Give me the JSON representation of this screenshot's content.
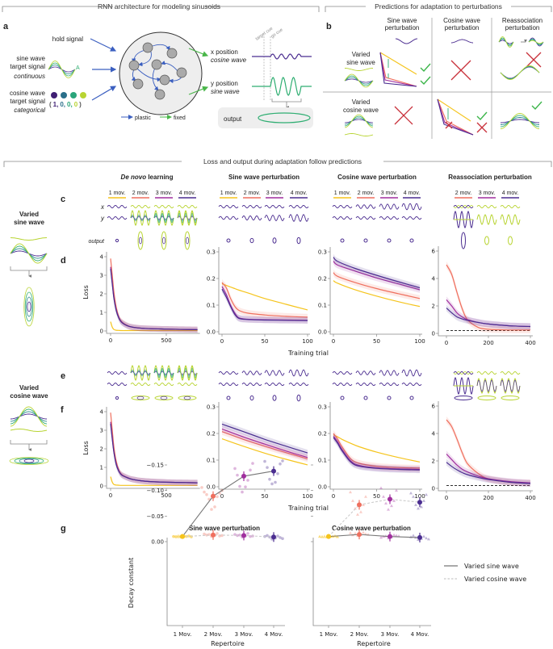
{
  "colors": {
    "mov1": "#f5c41c",
    "mov2": "#ef6f5e",
    "mov3": "#a02f9e",
    "mov4": "#4b2d90",
    "plastic_arrow": "#3b5fc0",
    "fixed_arrow": "#49b649",
    "lime": "#b8d432",
    "green": "#2fae72",
    "teal": "#2b8a8d",
    "check": "#3cb54a",
    "cross": "#c8303a"
  },
  "panel_labels": {
    "a": "a",
    "b": "b",
    "c": "c",
    "d": "d",
    "e": "e",
    "f": "f",
    "g": "g"
  },
  "section_a": {
    "header": "RNN architecture for modeling sinusoids",
    "hold_signal": "hold signal",
    "sine_line1": "sine wave",
    "sine_line2": "target signal",
    "sine_line3": "continuous",
    "amplitude_label": "A",
    "cos_line1": "cosine wave",
    "cos_line2": "target signal",
    "cos_line3": "categorical",
    "onehot_open": "(",
    "onehot": [
      "1,",
      "0,",
      "0,",
      "0"
    ],
    "onehot_close": ")",
    "x_position": "x position",
    "x_wave": "cosine wave",
    "y_position": "y position",
    "y_wave": "sine wave",
    "target_cue": "target cue",
    "go_cue": "go cue",
    "output": "output",
    "legend_plastic": "plastic",
    "legend_fixed": "fixed"
  },
  "section_b": {
    "header": "Predictions for adaptation to perturbations",
    "columns": [
      {
        "line1": "Sine wave",
        "line2": "perturbation"
      },
      {
        "line1": "Cosine wave",
        "line2": "perturbation"
      },
      {
        "line1": "Reassociation",
        "line2": "perturbation"
      }
    ],
    "rows": [
      {
        "line1": "Varied",
        "line2": "sine wave",
        "outcomes": [
          "check",
          "cross",
          "cross"
        ]
      },
      {
        "line1": "Varied",
        "line2": "cosine wave",
        "outcomes": [
          "cross",
          "check-and-cross",
          "check"
        ]
      }
    ]
  },
  "section_cf": {
    "header": "Loss and output during adaptation follow predictions",
    "columns": [
      {
        "title_italic": "De novo",
        "title_rest": " learning",
        "legend": [
          "1 mov.",
          "2 mov.",
          "3 mov.",
          "4 mov."
        ]
      },
      {
        "title_italic": "",
        "title_rest": "Sine wave perturbation",
        "legend": [
          "1 mov.",
          "2 mov.",
          "3 mov.",
          "4 mov."
        ]
      },
      {
        "title_italic": "",
        "title_rest": "Cosine wave perturbation",
        "legend": [
          "1 mov.",
          "2 mov.",
          "3 mov.",
          "4 mov."
        ]
      },
      {
        "title_italic": "",
        "title_rest": "Reassociation perturbation",
        "legend": [
          "2 mov.",
          "3 mov.",
          "4 mov."
        ]
      }
    ],
    "x_row_label": "x",
    "y_row_label": "y",
    "output_row_label": "output",
    "left_sine": {
      "line1": "Varied",
      "line2": "sine wave"
    },
    "left_cos": {
      "line1": "Varied",
      "line2": "cosine wave"
    },
    "ylabel": "Loss",
    "xlabel": "Training trial"
  },
  "chart_data": [
    {
      "id": "d1",
      "type": "line",
      "panel": "d",
      "column": "De novo learning",
      "ylabel": "Loss",
      "xlim": [
        0,
        780
      ],
      "ylim": [
        0,
        4.25
      ],
      "xticks": [
        0,
        500
      ],
      "yticks": [
        0,
        1,
        2,
        3,
        4
      ],
      "x": [
        0,
        15,
        30,
        50,
        75,
        100,
        150,
        200,
        300,
        500,
        780
      ],
      "series": [
        {
          "name": "1 mov.",
          "values": [
            0.5,
            0.2,
            0.08,
            0.04,
            0.03,
            0.02,
            0.02,
            0.02,
            0.02,
            0.02,
            0.02
          ]
        },
        {
          "name": "2 mov.",
          "values": [
            3.9,
            3.0,
            2.1,
            1.3,
            0.75,
            0.5,
            0.3,
            0.2,
            0.14,
            0.1,
            0.07
          ]
        },
        {
          "name": "3 mov.",
          "values": [
            3.45,
            2.6,
            1.8,
            1.15,
            0.7,
            0.47,
            0.28,
            0.2,
            0.14,
            0.1,
            0.07
          ]
        },
        {
          "name": "4 mov.",
          "values": [
            3.35,
            2.5,
            1.75,
            1.1,
            0.68,
            0.46,
            0.28,
            0.2,
            0.14,
            0.1,
            0.07
          ]
        }
      ]
    },
    {
      "id": "d2",
      "type": "line",
      "panel": "d",
      "column": "Sine wave perturbation",
      "xlim": [
        0,
        100
      ],
      "ylim": [
        0,
        0.3
      ],
      "xticks": [
        0,
        50,
        100
      ],
      "yticks": [
        0.0,
        0.1,
        0.2,
        0.3
      ],
      "ytick_labels": [
        "0.0",
        "0.1",
        "0.2",
        "0.3"
      ],
      "x": [
        0,
        5,
        10,
        15,
        20,
        30,
        50,
        75,
        100
      ],
      "series": [
        {
          "name": "1 mov.",
          "values": [
            0.18,
            0.174,
            0.168,
            0.162,
            0.156,
            0.146,
            0.125,
            0.103,
            0.082
          ]
        },
        {
          "name": "2 mov.",
          "values": [
            0.185,
            0.165,
            0.125,
            0.095,
            0.08,
            0.07,
            0.063,
            0.058,
            0.055
          ]
        },
        {
          "name": "3 mov.",
          "values": [
            0.17,
            0.14,
            0.1,
            0.07,
            0.052,
            0.047,
            0.045,
            0.044,
            0.043
          ]
        },
        {
          "name": "4 mov.",
          "values": [
            0.16,
            0.13,
            0.095,
            0.065,
            0.05,
            0.046,
            0.044,
            0.043,
            0.042
          ]
        }
      ]
    },
    {
      "id": "d3",
      "type": "line",
      "panel": "d",
      "column": "Cosine wave perturbation",
      "xlim": [
        0,
        100
      ],
      "ylim": [
        0,
        0.3
      ],
      "xticks": [
        0,
        50,
        100
      ],
      "yticks": [
        0.0,
        0.1,
        0.2,
        0.3
      ],
      "ytick_labels": [
        "0.0",
        "0.1",
        "0.2",
        "0.3"
      ],
      "x": [
        0,
        5,
        25,
        50,
        75,
        100
      ],
      "series": [
        {
          "name": "1 mov.",
          "values": [
            0.192,
            0.182,
            0.158,
            0.134,
            0.113,
            0.095
          ]
        },
        {
          "name": "2 mov.",
          "values": [
            0.222,
            0.208,
            0.185,
            0.162,
            0.143,
            0.125
          ]
        },
        {
          "name": "3 mov.",
          "values": [
            0.265,
            0.25,
            0.228,
            0.202,
            0.18,
            0.158
          ]
        },
        {
          "name": "4 mov.",
          "values": [
            0.28,
            0.264,
            0.238,
            0.212,
            0.188,
            0.165
          ]
        }
      ]
    },
    {
      "id": "d4",
      "type": "line",
      "panel": "d",
      "column": "Reassociation perturbation",
      "xlim": [
        0,
        400
      ],
      "ylim": [
        0,
        6
      ],
      "xticks": [
        0,
        200,
        400
      ],
      "yticks": [
        0,
        2,
        4,
        6
      ],
      "baseline": 0.2,
      "x": [
        0,
        25,
        50,
        75,
        100,
        150,
        200,
        300,
        400
      ],
      "series": [
        {
          "name": "2 mov.",
          "values": [
            5.0,
            4.3,
            3.0,
            1.8,
            1.0,
            0.45,
            0.3,
            0.25,
            0.25
          ]
        },
        {
          "name": "3 mov.",
          "values": [
            2.45,
            2.0,
            1.5,
            1.2,
            1.0,
            0.8,
            0.68,
            0.55,
            0.5
          ]
        },
        {
          "name": "4 mov.",
          "values": [
            1.85,
            1.5,
            1.2,
            1.05,
            0.95,
            0.8,
            0.68,
            0.55,
            0.5
          ]
        }
      ]
    },
    {
      "id": "f1",
      "type": "line",
      "panel": "f",
      "column": "De novo learning",
      "ylabel": "Loss",
      "xlim": [
        0,
        780
      ],
      "ylim": [
        0,
        4.25
      ],
      "xticks": [
        0,
        500
      ],
      "yticks": [
        0,
        1,
        2,
        3,
        4
      ],
      "x": [
        0,
        15,
        30,
        50,
        75,
        100,
        150,
        200,
        300,
        500,
        780
      ],
      "series": [
        {
          "name": "1 mov.",
          "values": [
            0.5,
            0.2,
            0.08,
            0.05,
            0.04,
            0.03,
            0.03,
            0.03,
            0.03,
            0.03,
            0.03
          ]
        },
        {
          "name": "2 mov.",
          "values": [
            3.95,
            3.0,
            2.1,
            1.35,
            0.85,
            0.62,
            0.45,
            0.35,
            0.26,
            0.2,
            0.17
          ]
        },
        {
          "name": "3 mov.",
          "values": [
            3.45,
            2.6,
            1.85,
            1.2,
            0.8,
            0.6,
            0.45,
            0.35,
            0.26,
            0.2,
            0.17
          ]
        },
        {
          "name": "4 mov.",
          "values": [
            3.35,
            2.5,
            1.8,
            1.15,
            0.78,
            0.58,
            0.44,
            0.35,
            0.26,
            0.2,
            0.17
          ]
        }
      ]
    },
    {
      "id": "f2",
      "type": "line",
      "panel": "f",
      "column": "Sine wave perturbation",
      "xlim": [
        0,
        100
      ],
      "ylim": [
        0,
        0.3
      ],
      "xticks": [
        0,
        50,
        100
      ],
      "yticks": [
        0.0,
        0.1,
        0.2,
        0.3
      ],
      "ytick_labels": [
        "0.0",
        "0.1",
        "0.2",
        "0.3"
      ],
      "x": [
        0,
        25,
        50,
        75,
        100
      ],
      "series": [
        {
          "name": "1 mov.",
          "values": [
            0.18,
            0.152,
            0.126,
            0.103,
            0.082
          ]
        },
        {
          "name": "2 mov.",
          "values": [
            0.207,
            0.178,
            0.152,
            0.128,
            0.105
          ]
        },
        {
          "name": "3 mov.",
          "values": [
            0.217,
            0.187,
            0.16,
            0.134,
            0.11
          ]
        },
        {
          "name": "4 mov.",
          "values": [
            0.235,
            0.207,
            0.178,
            0.152,
            0.127
          ]
        }
      ]
    },
    {
      "id": "f3",
      "type": "line",
      "panel": "f",
      "column": "Cosine wave perturbation",
      "xlim": [
        0,
        100
      ],
      "ylim": [
        0,
        0.3
      ],
      "xticks": [
        0,
        50,
        100
      ],
      "yticks": [
        0.0,
        0.1,
        0.2,
        0.3
      ],
      "ytick_labels": [
        "0.0",
        "0.1",
        "0.2",
        "0.3"
      ],
      "x": [
        0,
        5,
        10,
        20,
        30,
        50,
        75,
        100
      ],
      "series": [
        {
          "name": "1 mov.",
          "values": [
            0.195,
            0.187,
            0.178,
            0.163,
            0.15,
            0.13,
            0.11,
            0.093
          ]
        },
        {
          "name": "2 mov.",
          "values": [
            0.2,
            0.178,
            0.15,
            0.105,
            0.088,
            0.077,
            0.072,
            0.07
          ]
        },
        {
          "name": "3 mov.",
          "values": [
            0.19,
            0.168,
            0.14,
            0.097,
            0.08,
            0.071,
            0.067,
            0.065
          ]
        },
        {
          "name": "4 mov.",
          "values": [
            0.185,
            0.162,
            0.135,
            0.093,
            0.077,
            0.069,
            0.065,
            0.063
          ]
        }
      ]
    },
    {
      "id": "f4",
      "type": "line",
      "panel": "f",
      "column": "Reassociation perturbation",
      "xlim": [
        0,
        400
      ],
      "ylim": [
        0,
        6
      ],
      "xticks": [
        0,
        200,
        400
      ],
      "yticks": [
        0,
        2,
        4,
        6
      ],
      "baseline": 0.2,
      "x": [
        0,
        25,
        50,
        75,
        100,
        150,
        200,
        300,
        400
      ],
      "series": [
        {
          "name": "2 mov.",
          "values": [
            5.0,
            4.5,
            3.6,
            2.6,
            1.8,
            1.1,
            0.7,
            0.45,
            0.38
          ]
        },
        {
          "name": "3 mov.",
          "values": [
            2.5,
            2.1,
            1.7,
            1.4,
            1.2,
            0.9,
            0.7,
            0.5,
            0.4
          ]
        },
        {
          "name": "4 mov.",
          "values": [
            1.9,
            1.6,
            1.35,
            1.15,
            1.0,
            0.8,
            0.65,
            0.45,
            0.35
          ]
        }
      ]
    },
    {
      "id": "g1",
      "type": "scatter",
      "panel": "g",
      "title": "Sine wave perturbation",
      "xlabel": "Repertoire",
      "ylabel": "Decay constant",
      "categories": [
        "1 Mov.",
        "2 Mov.",
        "3 Mov.",
        "4 Mov."
      ],
      "ylim": [
        -0.16,
        0.0
      ],
      "yticks": [
        0.0,
        -0.05,
        -0.1,
        -0.15
      ],
      "ytick_labels": [
        "0.00",
        "−0.05",
        "−0.10",
        "−0.15"
      ],
      "series": [
        {
          "name": "Varied sine wave",
          "line": "solid",
          "marker": "circle",
          "means": [
            -0.01,
            -0.089,
            -0.128,
            -0.138
          ],
          "points": [
            [
              -0.009,
              -0.01,
              -0.011,
              -0.01,
              -0.009,
              -0.011,
              -0.01,
              -0.01
            ],
            [
              -0.063,
              -0.068,
              -0.083,
              -0.088,
              -0.092,
              -0.095,
              -0.097,
              -0.1,
              -0.106
            ],
            [
              -0.097,
              -0.107,
              -0.108,
              -0.12,
              -0.13,
              -0.14,
              -0.143,
              -0.153
            ],
            [
              -0.113,
              -0.116,
              -0.122,
              -0.133,
              -0.145,
              -0.152,
              -0.157,
              -0.158
            ]
          ]
        },
        {
          "name": "Varied cosine wave",
          "line": "dashed",
          "marker": "circle",
          "means": [
            -0.01,
            -0.013,
            -0.012,
            -0.009
          ],
          "points": [
            [
              -0.01,
              -0.011,
              -0.009,
              -0.01,
              -0.01,
              -0.011,
              -0.01,
              -0.009
            ],
            [
              -0.01,
              -0.012,
              -0.014,
              -0.016,
              -0.013,
              -0.011,
              -0.015,
              -0.012
            ],
            [
              -0.009,
              -0.011,
              -0.013,
              -0.016,
              -0.012,
              -0.01,
              -0.014,
              -0.011
            ],
            [
              -0.005,
              -0.007,
              -0.009,
              -0.011,
              -0.012,
              -0.008,
              -0.01,
              -0.006
            ]
          ]
        }
      ]
    },
    {
      "id": "g2",
      "type": "scatter",
      "panel": "g",
      "title": "Cosine wave perturbation",
      "xlabel": "Repertoire",
      "categories": [
        "1 Mov.",
        "2 Mov.",
        "3 Mov.",
        "4 Mov."
      ],
      "ylim": [
        -0.16,
        0.0
      ],
      "yticks": [
        0.0,
        -0.05,
        -0.1,
        -0.15
      ],
      "legend": "right",
      "series": [
        {
          "name": "Varied sine wave",
          "line": "solid",
          "marker": "triangle",
          "means": [
            -0.01,
            -0.014,
            -0.01,
            -0.008
          ],
          "points": [
            [
              -0.009,
              -0.01,
              -0.011,
              -0.01,
              -0.009,
              -0.011,
              -0.01,
              -0.01
            ],
            [
              -0.012,
              -0.014,
              -0.016,
              -0.018,
              -0.013,
              -0.015,
              -0.017,
              -0.014
            ],
            [
              -0.007,
              -0.009,
              -0.011,
              -0.013,
              -0.01,
              -0.012,
              -0.008,
              -0.011
            ],
            [
              -0.004,
              -0.006,
              -0.008,
              -0.01,
              -0.012,
              -0.007,
              -0.009,
              -0.005
            ]
          ]
        },
        {
          "name": "Varied cosine wave",
          "line": "dashed",
          "marker": "triangle",
          "means": [
            -0.01,
            -0.072,
            -0.083,
            -0.077
          ],
          "points": [
            [
              -0.01,
              -0.011,
              -0.009,
              -0.01,
              -0.01,
              -0.011,
              -0.01,
              -0.009
            ],
            [
              -0.053,
              -0.058,
              -0.065,
              -0.072,
              -0.08,
              -0.088,
              -0.097
            ],
            [
              -0.063,
              -0.07,
              -0.075,
              -0.08,
              -0.088,
              -0.1,
              -0.105
            ],
            [
              -0.065,
              -0.068,
              -0.072,
              -0.08,
              -0.088,
              -0.092,
              -0.095
            ]
          ]
        }
      ]
    }
  ]
}
